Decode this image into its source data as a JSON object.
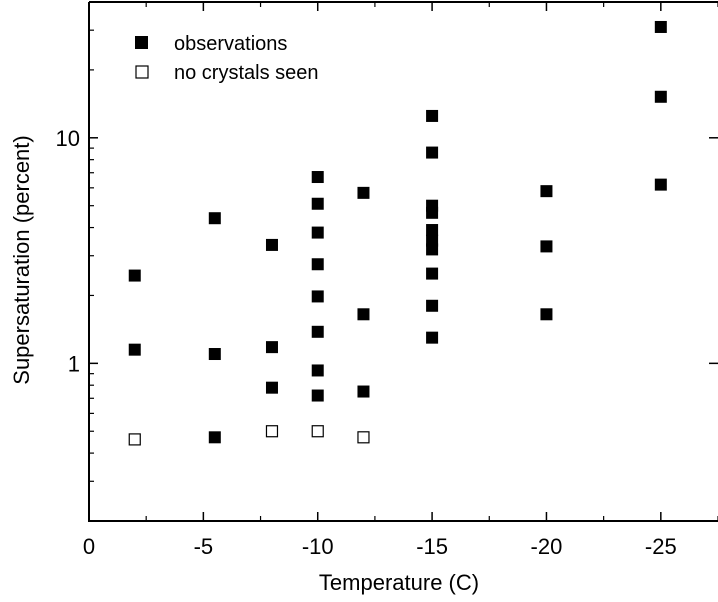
{
  "chart_data": {
    "type": "scatter",
    "title": "",
    "xlabel": "Temperature (C)",
    "ylabel": "Supersaturation (percent)",
    "x_ticks": [
      0,
      -5,
      -10,
      -15,
      -20,
      -25
    ],
    "x_tick_labels": [
      "0",
      "-5",
      "-10",
      "-15",
      "-20",
      "-25"
    ],
    "xlim": [
      0,
      -27.5
    ],
    "y_scale": "log",
    "y_ticks": [
      1,
      10
    ],
    "y_tick_labels": [
      "1",
      "10"
    ],
    "ylim": [
      0.2,
      40
    ],
    "legend_position": "top-left",
    "series": [
      {
        "name": "observations",
        "marker": "filled-square",
        "color": "#000000",
        "points": [
          {
            "x": -2,
            "y": 2.45
          },
          {
            "x": -2,
            "y": 1.15
          },
          {
            "x": -5.5,
            "y": 4.4
          },
          {
            "x": -5.5,
            "y": 1.1
          },
          {
            "x": -5.5,
            "y": 0.47
          },
          {
            "x": -8,
            "y": 3.35
          },
          {
            "x": -8,
            "y": 1.18
          },
          {
            "x": -8,
            "y": 0.78
          },
          {
            "x": -10,
            "y": 6.7
          },
          {
            "x": -10,
            "y": 5.1
          },
          {
            "x": -10,
            "y": 3.8
          },
          {
            "x": -10,
            "y": 2.75
          },
          {
            "x": -10,
            "y": 1.98
          },
          {
            "x": -10,
            "y": 1.38
          },
          {
            "x": -10,
            "y": 0.93
          },
          {
            "x": -10,
            "y": 0.72
          },
          {
            "x": -12,
            "y": 5.7
          },
          {
            "x": -12,
            "y": 1.65
          },
          {
            "x": -12,
            "y": 0.75
          },
          {
            "x": -15,
            "y": 12.5
          },
          {
            "x": -15,
            "y": 8.6
          },
          {
            "x": -15,
            "y": 5.0
          },
          {
            "x": -15,
            "y": 4.65
          },
          {
            "x": -15,
            "y": 3.9
          },
          {
            "x": -15,
            "y": 3.5
          },
          {
            "x": -15,
            "y": 3.2
          },
          {
            "x": -15,
            "y": 2.5
          },
          {
            "x": -15,
            "y": 1.8
          },
          {
            "x": -15,
            "y": 1.3
          },
          {
            "x": -20,
            "y": 5.8
          },
          {
            "x": -20,
            "y": 3.3
          },
          {
            "x": -20,
            "y": 1.65
          },
          {
            "x": -25,
            "y": 31
          },
          {
            "x": -25,
            "y": 15.2
          },
          {
            "x": -25,
            "y": 6.2
          }
        ]
      },
      {
        "name": "no crystals seen",
        "marker": "open-square",
        "color": "#000000",
        "points": [
          {
            "x": -2,
            "y": 0.46
          },
          {
            "x": -8,
            "y": 0.5
          },
          {
            "x": -10,
            "y": 0.5
          },
          {
            "x": -12,
            "y": 0.47
          }
        ]
      }
    ]
  }
}
